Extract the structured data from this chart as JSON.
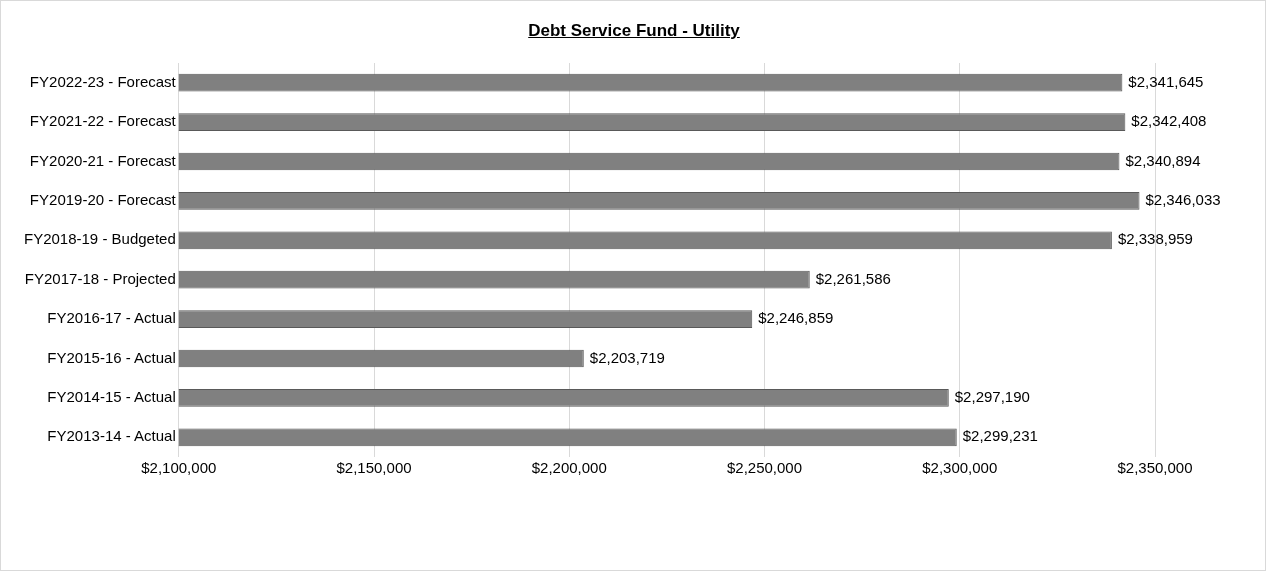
{
  "chart_data": {
    "type": "bar",
    "orientation": "horizontal",
    "title": "Debt Service Fund - Utility",
    "categories": [
      "FY2022-23 - Forecast",
      "FY2021-22 - Forecast",
      "FY2020-21 - Forecast",
      "FY2019-20 - Forecast",
      "FY2018-19 - Budgeted",
      "FY2017-18 - Projected",
      "FY2016-17 - Actual",
      "FY2015-16 - Actual",
      "FY2014-15 - Actual",
      "FY2013-14 - Actual"
    ],
    "values": [
      2341645,
      2342408,
      2340894,
      2346033,
      2338959,
      2261586,
      2246859,
      2203719,
      2297190,
      2299231
    ],
    "value_labels": [
      "$2,341,645",
      "$2,342,408",
      "$2,340,894",
      "$2,346,033",
      "$2,338,959",
      "$2,261,586",
      "$2,246,859",
      "$2,203,719",
      "$2,297,190",
      "$2,299,231"
    ],
    "color": "#808080",
    "xlim": [
      2100000,
      2350000
    ],
    "xticks": [
      {
        "value": 2100000,
        "label": "$2,100,000"
      },
      {
        "value": 2150000,
        "label": "$2,150,000"
      },
      {
        "value": 2200000,
        "label": "$2,200,000"
      },
      {
        "value": 2250000,
        "label": "$2,250,000"
      },
      {
        "value": 2300000,
        "label": "$2,300,000"
      },
      {
        "value": 2350000,
        "label": "$2,350,000"
      }
    ],
    "grid": "x"
  }
}
